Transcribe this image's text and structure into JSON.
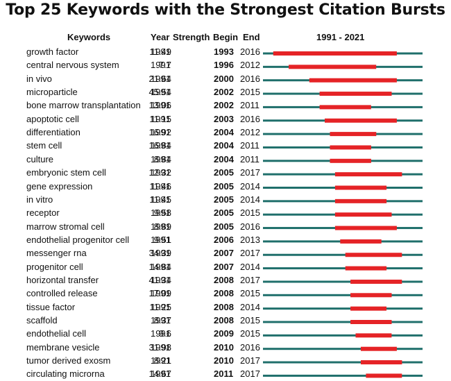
{
  "chart_data": {
    "type": "bar",
    "title": "Top 25 Keywords with the Strongest Citation Bursts",
    "headers": {
      "keyword": "Keywords",
      "year": "Year",
      "strength": "Strength",
      "begin": "Begin",
      "end": "End",
      "range": "1991 - 2021"
    },
    "range": [
      1991,
      2021
    ],
    "colors": {
      "baseline": "#1f6f6b",
      "burst": "#e52326"
    },
    "rows": [
      {
        "keyword": "growth factor",
        "year": "1991",
        "strength": "11.49",
        "begin": "1993",
        "end": "2016"
      },
      {
        "keyword": "central nervous system",
        "year": "1991",
        "strength": "7.7",
        "begin": "1996",
        "end": "2012"
      },
      {
        "keyword": "in vivo",
        "year": "1991",
        "strength": "21.64",
        "begin": "2000",
        "end": "2016"
      },
      {
        "keyword": "microparticle",
        "year": "1991",
        "strength": "45.54",
        "begin": "2002",
        "end": "2015"
      },
      {
        "keyword": "bone marrow transplantation",
        "year": "1991",
        "strength": "13.06",
        "begin": "2002",
        "end": "2011"
      },
      {
        "keyword": "apoptotic cell",
        "year": "1991",
        "strength": "11.15",
        "begin": "2003",
        "end": "2016"
      },
      {
        "keyword": "differentiation",
        "year": "1991",
        "strength": "16.92",
        "begin": "2004",
        "end": "2012"
      },
      {
        "keyword": "stem cell",
        "year": "1991",
        "strength": "16.84",
        "begin": "2004",
        "end": "2011"
      },
      {
        "keyword": "culture",
        "year": "1991",
        "strength": "8.84",
        "begin": "2004",
        "end": "2011"
      },
      {
        "keyword": "embryonic stem cell",
        "year": "1991",
        "strength": "12.32",
        "begin": "2005",
        "end": "2017"
      },
      {
        "keyword": "gene expression",
        "year": "1991",
        "strength": "11.46",
        "begin": "2005",
        "end": "2014"
      },
      {
        "keyword": "in vitro",
        "year": "1991",
        "strength": "11.45",
        "begin": "2005",
        "end": "2014"
      },
      {
        "keyword": "receptor",
        "year": "1991",
        "strength": "9.58",
        "begin": "2005",
        "end": "2015"
      },
      {
        "keyword": "marrow stromal cell",
        "year": "1991",
        "strength": "8.89",
        "begin": "2005",
        "end": "2016"
      },
      {
        "keyword": "endothelial progenitor cell",
        "year": "1991",
        "strength": "9.51",
        "begin": "2006",
        "end": "2013"
      },
      {
        "keyword": "messenger rna",
        "year": "1991",
        "strength": "34.39",
        "begin": "2007",
        "end": "2017"
      },
      {
        "keyword": "progenitor cell",
        "year": "1991",
        "strength": "14.84",
        "begin": "2007",
        "end": "2014"
      },
      {
        "keyword": "horizontal transfer",
        "year": "1991",
        "strength": "41.34",
        "begin": "2008",
        "end": "2017"
      },
      {
        "keyword": "controlled release",
        "year": "1991",
        "strength": "17.09",
        "begin": "2008",
        "end": "2015"
      },
      {
        "keyword": "tissue factor",
        "year": "1991",
        "strength": "11.25",
        "begin": "2008",
        "end": "2014"
      },
      {
        "keyword": "scaffold",
        "year": "1991",
        "strength": "8.37",
        "begin": "2008",
        "end": "2015"
      },
      {
        "keyword": "endothelial cell",
        "year": "1991",
        "strength": "9.6",
        "begin": "2009",
        "end": "2015"
      },
      {
        "keyword": "membrane vesicle",
        "year": "1991",
        "strength": "31.98",
        "begin": "2010",
        "end": "2016"
      },
      {
        "keyword": "tumor derived exosm",
        "year": "1991",
        "strength": "8.21",
        "begin": "2010",
        "end": "2017"
      },
      {
        "keyword": "circulating microrna",
        "year": "1991",
        "strength": "14.67",
        "begin": "2011",
        "end": "2017"
      }
    ]
  }
}
